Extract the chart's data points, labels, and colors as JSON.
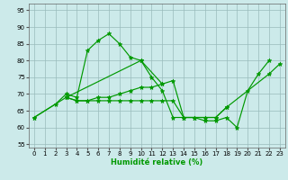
{
  "background_color": "#cceaea",
  "grid_color": "#99bbbb",
  "line_color": "#009900",
  "xlabel": "Humidité relative (%)",
  "xlim": [
    -0.5,
    23.5
  ],
  "ylim": [
    54,
    97
  ],
  "yticks": [
    55,
    60,
    65,
    70,
    75,
    80,
    85,
    90,
    95
  ],
  "xticks": [
    0,
    1,
    2,
    3,
    4,
    5,
    6,
    7,
    8,
    9,
    10,
    11,
    12,
    13,
    14,
    15,
    16,
    17,
    18,
    19,
    20,
    21,
    22,
    23
  ],
  "lines": [
    [
      [
        0,
        2,
        3,
        4,
        5,
        6,
        7,
        8,
        9,
        10,
        11,
        12,
        13,
        14,
        15,
        16,
        17,
        18,
        19,
        20,
        21,
        22
      ],
      [
        63,
        67,
        70,
        69,
        83,
        86,
        88,
        85,
        81,
        80,
        75,
        71,
        63,
        63,
        63,
        62,
        62,
        63,
        60,
        71,
        76,
        80
      ]
    ],
    [
      [
        0,
        3,
        4,
        5,
        6,
        7,
        8,
        9,
        10,
        11,
        12,
        13,
        14,
        15,
        16,
        17,
        18
      ],
      [
        63,
        69,
        68,
        68,
        68,
        68,
        68,
        68,
        68,
        68,
        68,
        68,
        63,
        63,
        63,
        63,
        66
      ]
    ],
    [
      [
        3,
        4,
        5,
        6,
        7,
        8,
        9,
        10,
        11,
        12,
        13,
        14,
        15,
        16,
        17,
        18,
        22,
        23
      ],
      [
        69,
        68,
        68,
        69,
        69,
        70,
        71,
        72,
        72,
        73,
        74,
        63,
        63,
        63,
        63,
        66,
        76,
        79
      ]
    ],
    [
      [
        3,
        10,
        12
      ],
      [
        69,
        80,
        73
      ]
    ]
  ]
}
